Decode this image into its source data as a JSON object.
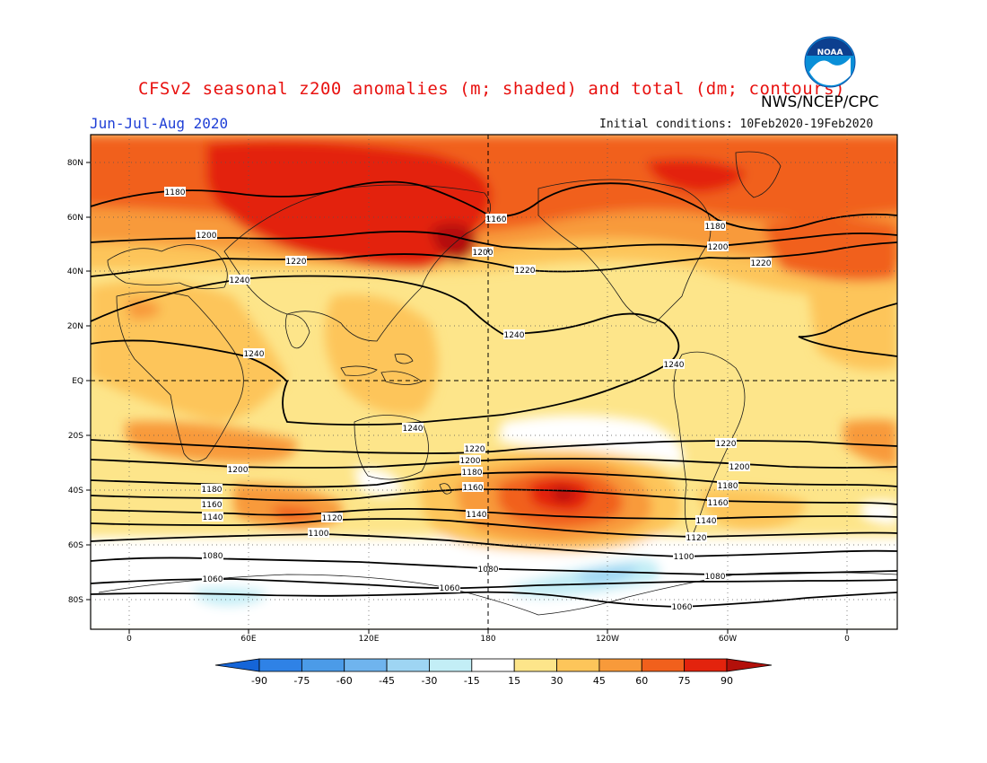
{
  "header": {
    "title": "CFSv2 seasonal z200 anomalies (m; shaded) and total (dm; contours)",
    "agency": "NWS/NCEP/CPC",
    "season": "Jun-Jul-Aug 2020",
    "initial_conditions": "Initial conditions: 10Feb2020-19Feb2020",
    "logo_text": "NOAA"
  },
  "map": {
    "lat_labels": [
      "80N",
      "60N",
      "40N",
      "20N",
      "EQ",
      "20S",
      "40S",
      "60S",
      "80S"
    ],
    "lon_labels": [
      "0",
      "60E",
      "120E",
      "180",
      "120W",
      "60W",
      "0"
    ],
    "contour_labels": [
      {
        "text": "1180"
      },
      {
        "text": "1200"
      },
      {
        "text": "1220"
      },
      {
        "text": "1240"
      },
      {
        "text": "1240"
      },
      {
        "text": "1160"
      },
      {
        "text": "1200"
      },
      {
        "text": "1220"
      },
      {
        "text": "1240"
      },
      {
        "text": "1240"
      },
      {
        "text": "1180"
      },
      {
        "text": "1200"
      },
      {
        "text": "1220"
      },
      {
        "text": "1240"
      },
      {
        "text": "1220"
      },
      {
        "text": "1200"
      },
      {
        "text": "1180"
      },
      {
        "text": "1160"
      },
      {
        "text": "1140"
      },
      {
        "text": "1200"
      },
      {
        "text": "1180"
      },
      {
        "text": "1160"
      },
      {
        "text": "1140"
      },
      {
        "text": "1120"
      },
      {
        "text": "1100"
      },
      {
        "text": "1220"
      },
      {
        "text": "1200"
      },
      {
        "text": "1180"
      },
      {
        "text": "1160"
      },
      {
        "text": "1140"
      },
      {
        "text": "1120"
      },
      {
        "text": "1100"
      },
      {
        "text": "1080"
      },
      {
        "text": "1080"
      },
      {
        "text": "1060"
      },
      {
        "text": "1080"
      },
      {
        "text": "1060"
      },
      {
        "text": "1060"
      }
    ]
  },
  "colorbar": {
    "labels": [
      "-90",
      "-75",
      "-60",
      "-45",
      "-30",
      "-15",
      "15",
      "30",
      "45",
      "60",
      "75",
      "90"
    ],
    "colors": [
      "#1565d8",
      "#2f82e6",
      "#4b9be8",
      "#6fb4ee",
      "#9ed5f3",
      "#c3eef6",
      "#ffffff",
      "#fde58a",
      "#fdc55a",
      "#f89a3a",
      "#f1601c",
      "#e3230d",
      "#b3100a"
    ]
  }
}
